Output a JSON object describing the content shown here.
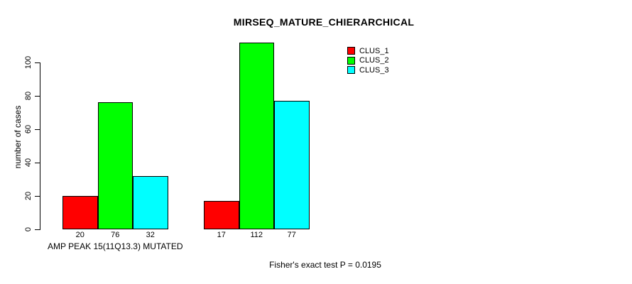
{
  "chart_data": {
    "type": "bar",
    "title": "MIRSEQ_MATURE_CHIERARCHICAL",
    "ylabel": "number of cases",
    "xlabel": "",
    "categories": [
      "AMP PEAK 15(11Q13.3) MUTATED",
      ""
    ],
    "series": [
      {
        "name": "CLUS_1",
        "color": "#ff0000",
        "values": [
          20,
          17
        ]
      },
      {
        "name": "CLUS_2",
        "color": "#00ff00",
        "values": [
          76,
          112
        ]
      },
      {
        "name": "CLUS_3",
        "color": "#00ffff",
        "values": [
          32,
          77
        ]
      }
    ],
    "y_ticks": [
      0,
      20,
      40,
      60,
      80,
      100
    ],
    "ylim": [
      0,
      112
    ],
    "bar_value_labels_shown": true,
    "legend_position": "topright",
    "legend_entries": [
      "CLUS_1",
      "CLUS_2",
      "CLUS_3"
    ],
    "grid": false,
    "axis_color": "#000000",
    "bar_border_color": "#000000"
  },
  "annotation": "Fisher's exact test P = 0.0195"
}
